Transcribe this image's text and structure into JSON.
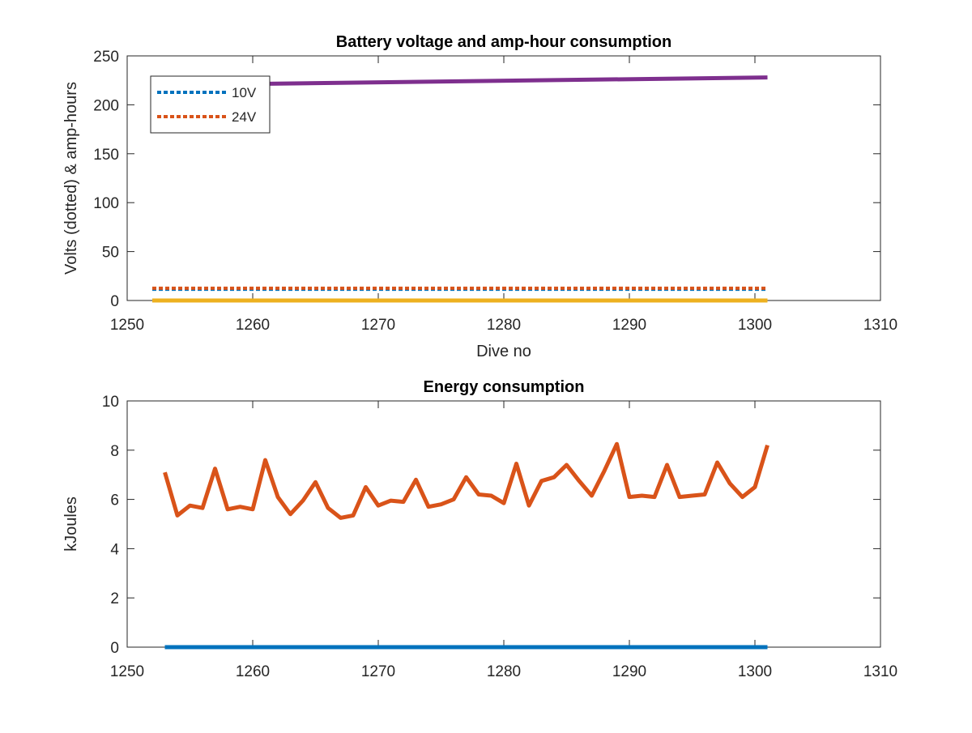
{
  "chart_data": [
    {
      "type": "line",
      "title": "Battery voltage and amp-hour consumption",
      "xlabel": "Dive no",
      "ylabel": "Volts (dotted) & amp-hours",
      "xlim": [
        1250,
        1310
      ],
      "ylim": [
        0,
        250
      ],
      "xticks": [
        "1250",
        "1260",
        "1270",
        "1280",
        "1290",
        "1300",
        "1310"
      ],
      "yticks": [
        "0",
        "50",
        "100",
        "150",
        "200",
        "250"
      ],
      "grid": false,
      "legend": {
        "placement": "top-left",
        "entries": [
          "10V",
          "24V"
        ]
      },
      "series": [
        {
          "name": "10V",
          "style": "dotted",
          "color": "#0072BD",
          "x": [
            1252,
            1301
          ],
          "y": [
            11.5,
            11.5
          ]
        },
        {
          "name": "24V",
          "style": "dotted",
          "color": "#D95319",
          "x": [
            1252,
            1301
          ],
          "y": [
            12.5,
            12.5
          ]
        },
        {
          "style": "solid",
          "color": "#EDB120",
          "x": [
            1252,
            1301
          ],
          "y": [
            0,
            0
          ]
        },
        {
          "style": "solid",
          "color": "#7E2F8E",
          "x": [
            1252,
            1301
          ],
          "y": [
            220,
            228
          ]
        }
      ]
    },
    {
      "type": "line",
      "title": "Energy consumption",
      "xlabel": "",
      "ylabel": "kJoules",
      "xlim": [
        1250,
        1310
      ],
      "ylim": [
        0,
        10
      ],
      "xticks": [
        "1250",
        "1260",
        "1270",
        "1280",
        "1290",
        "1300",
        "1310"
      ],
      "yticks": [
        "0",
        "2",
        "4",
        "6",
        "8",
        "10"
      ],
      "grid": false,
      "series": [
        {
          "style": "solid",
          "color": "#0072BD",
          "x": [
            1253,
            1301
          ],
          "y": [
            0,
            0
          ]
        },
        {
          "style": "solid",
          "color": "#D95319",
          "x": [
            1253,
            1254,
            1255,
            1256,
            1257,
            1258,
            1259,
            1260,
            1261,
            1262,
            1263,
            1264,
            1265,
            1266,
            1267,
            1268,
            1269,
            1270,
            1271,
            1272,
            1273,
            1274,
            1275,
            1276,
            1277,
            1278,
            1279,
            1280,
            1281,
            1282,
            1283,
            1284,
            1285,
            1286,
            1287,
            1288,
            1289,
            1290,
            1291,
            1292,
            1293,
            1294,
            1295,
            1296,
            1297,
            1298,
            1299,
            1300,
            1301
          ],
          "y": [
            7.1,
            5.35,
            5.75,
            5.65,
            7.25,
            5.6,
            5.7,
            5.6,
            7.6,
            6.1,
            5.4,
            5.95,
            6.7,
            5.65,
            5.25,
            5.35,
            6.5,
            5.75,
            5.95,
            5.9,
            6.8,
            5.7,
            5.8,
            6.0,
            6.9,
            6.2,
            6.15,
            5.85,
            7.45,
            5.75,
            6.75,
            6.9,
            7.4,
            6.75,
            6.15,
            7.15,
            8.25,
            6.1,
            6.15,
            6.1,
            7.4,
            6.1,
            6.15,
            6.2,
            7.5,
            6.65,
            6.1,
            6.5,
            8.2
          ]
        }
      ]
    }
  ]
}
